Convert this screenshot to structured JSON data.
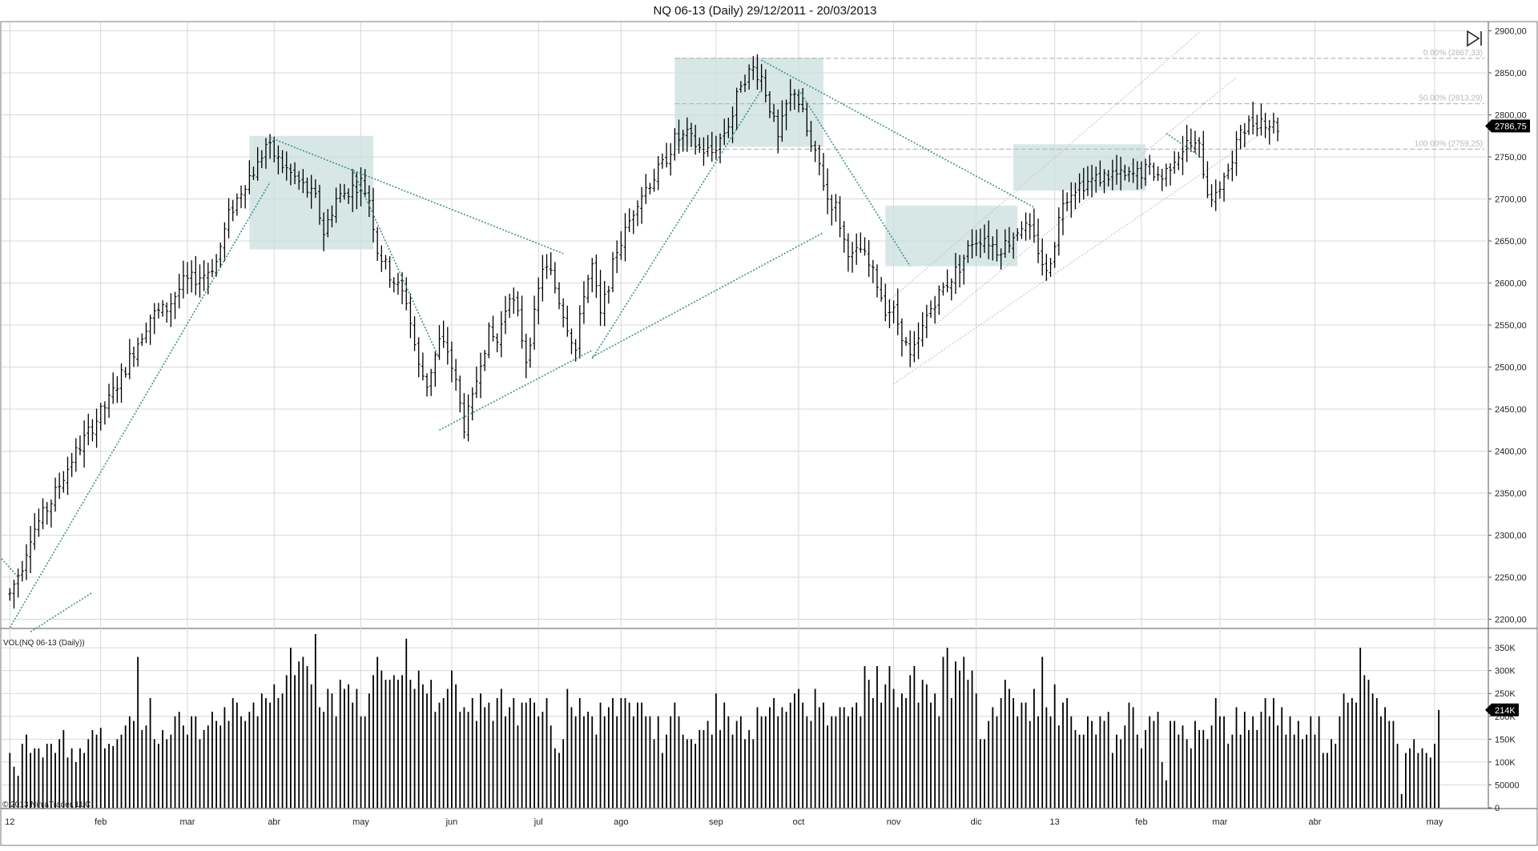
{
  "window": {
    "title": "NQ 06-13 (Daily)  29/12/2011 - 20/03/2013",
    "copyright": "© 2013 NinjaTrader, LLC",
    "button_icon": "play-end-icon"
  },
  "colors": {
    "background": "#ffffff",
    "grid": "#d8d8d8",
    "bar": "#000000",
    "trendline": "#3f8f8f",
    "zone_fill": "#c9dfdd",
    "fib_line": "#b4b4b4",
    "channel_line": "#c8c8c8",
    "price_tag_bg": "#000000",
    "price_tag_text": "#ffffff"
  },
  "chart_data": [
    {
      "type": "ohlc",
      "name": "price-panel",
      "title": "NQ 06-13 (Daily)  29/12/2011 - 20/03/2013",
      "ylim": [
        2190,
        2910
      ],
      "yticks": [
        2200,
        2250,
        2300,
        2350,
        2400,
        2450,
        2500,
        2550,
        2600,
        2650,
        2700,
        2750,
        2800,
        2850,
        2900
      ],
      "ytick_labels": [
        "2200,00",
        "2250,00",
        "2300,00",
        "2350,00",
        "2400,00",
        "2450,00",
        "2500,00",
        "2550,00",
        "2600,00",
        "2650,00",
        "2700,00",
        "2750,00",
        "2800,00",
        "2850,00",
        "2900,00"
      ],
      "last_price": 2786.75,
      "last_price_label": "2786,75",
      "x_months": [
        "12",
        "feb",
        "mar",
        "abr",
        "may",
        "jun",
        "jul",
        "ago",
        "sep",
        "oct",
        "nov",
        "dic",
        "13",
        "feb",
        "mar",
        "abr",
        "may"
      ],
      "x_month_index": [
        0,
        22,
        43,
        64,
        85,
        107,
        128,
        148,
        171,
        191,
        214,
        234,
        253,
        274,
        293,
        316,
        345
      ],
      "x_index_range": [
        -2,
        358
      ],
      "anchors": [
        [
          0,
          2230
        ],
        [
          3,
          2265
        ],
        [
          5,
          2300
        ],
        [
          10,
          2340
        ],
        [
          15,
          2390
        ],
        [
          20,
          2430
        ],
        [
          24,
          2460
        ],
        [
          28,
          2500
        ],
        [
          34,
          2560
        ],
        [
          38,
          2570
        ],
        [
          42,
          2600
        ],
        [
          47,
          2610
        ],
        [
          50,
          2625
        ],
        [
          53,
          2680
        ],
        [
          57,
          2720
        ],
        [
          60,
          2740
        ],
        [
          62,
          2765
        ],
        [
          66,
          2740
        ],
        [
          70,
          2720
        ],
        [
          74,
          2700
        ],
        [
          76,
          2660
        ],
        [
          79,
          2700
        ],
        [
          82,
          2710
        ],
        [
          85,
          2720
        ],
        [
          87,
          2700
        ],
        [
          89,
          2640
        ],
        [
          92,
          2610
        ],
        [
          96,
          2580
        ],
        [
          99,
          2500
        ],
        [
          101,
          2480
        ],
        [
          104,
          2530
        ],
        [
          106,
          2520
        ],
        [
          108,
          2480
        ],
        [
          110,
          2430
        ],
        [
          112,
          2460
        ],
        [
          114,
          2510
        ],
        [
          116,
          2540
        ],
        [
          118,
          2530
        ],
        [
          121,
          2590
        ],
        [
          123,
          2560
        ],
        [
          125,
          2510
        ],
        [
          127,
          2560
        ],
        [
          129,
          2620
        ],
        [
          131,
          2610
        ],
        [
          133,
          2580
        ],
        [
          135,
          2550
        ],
        [
          137,
          2520
        ],
        [
          139,
          2590
        ],
        [
          141,
          2620
        ],
        [
          143,
          2560
        ],
        [
          145,
          2600
        ],
        [
          147,
          2640
        ],
        [
          149,
          2660
        ],
        [
          152,
          2700
        ],
        [
          155,
          2720
        ],
        [
          158,
          2740
        ],
        [
          161,
          2770
        ],
        [
          164,
          2775
        ],
        [
          167,
          2760
        ],
        [
          170,
          2755
        ],
        [
          173,
          2780
        ],
        [
          175,
          2800
        ],
        [
          177,
          2840
        ],
        [
          180,
          2855
        ],
        [
          182,
          2845
        ],
        [
          184,
          2810
        ],
        [
          186,
          2770
        ],
        [
          188,
          2810
        ],
        [
          190,
          2830
        ],
        [
          192,
          2800
        ],
        [
          194,
          2760
        ],
        [
          196,
          2740
        ],
        [
          198,
          2700
        ],
        [
          200,
          2690
        ],
        [
          202,
          2650
        ],
        [
          204,
          2630
        ],
        [
          206,
          2640
        ],
        [
          208,
          2620
        ],
        [
          210,
          2600
        ],
        [
          212,
          2570
        ],
        [
          214,
          2565
        ],
        [
          216,
          2540
        ],
        [
          218,
          2510
        ],
        [
          220,
          2530
        ],
        [
          222,
          2560
        ],
        [
          224,
          2580
        ],
        [
          227,
          2600
        ],
        [
          230,
          2620
        ],
        [
          233,
          2650
        ],
        [
          236,
          2655
        ],
        [
          239,
          2640
        ],
        [
          242,
          2650
        ],
        [
          245,
          2670
        ],
        [
          247,
          2660
        ],
        [
          249,
          2640
        ],
        [
          251,
          2610
        ],
        [
          253,
          2650
        ],
        [
          255,
          2700
        ],
        [
          258,
          2715
        ],
        [
          261,
          2720
        ],
        [
          264,
          2725
        ],
        [
          267,
          2730
        ],
        [
          270,
          2725
        ],
        [
          273,
          2730
        ],
        [
          276,
          2735
        ],
        [
          279,
          2725
        ],
        [
          282,
          2750
        ],
        [
          285,
          2765
        ],
        [
          288,
          2760
        ],
        [
          290,
          2710
        ],
        [
          292,
          2700
        ],
        [
          294,
          2730
        ],
        [
          296,
          2740
        ],
        [
          298,
          2785
        ],
        [
          301,
          2790
        ],
        [
          303,
          2795
        ],
        [
          305,
          2790
        ],
        [
          307,
          2786
        ]
      ],
      "trendlines": [
        [
          [
            0,
            2190
          ],
          [
            63,
            2720
          ]
        ],
        [
          [
            63,
            2773
          ],
          [
            134,
            2635
          ]
        ],
        [
          [
            83,
            2735
          ],
          [
            104,
            2510
          ]
        ],
        [
          [
            104,
            2425
          ],
          [
            141,
            2520
          ]
        ],
        [
          [
            141,
            2510
          ],
          [
            182,
            2830
          ]
        ],
        [
          [
            182,
            2865
          ],
          [
            248,
            2690
          ]
        ],
        [
          [
            191,
            2830
          ],
          [
            218,
            2620
          ]
        ],
        [
          [
            141,
            2512
          ],
          [
            197,
            2660
          ]
        ],
        [
          [
            -2,
            2272
          ],
          [
            2,
            2250
          ]
        ],
        [
          [
            5,
            2185
          ],
          [
            20,
            2232
          ]
        ],
        [
          [
            280,
            2778
          ],
          [
            289,
            2748
          ]
        ]
      ],
      "zones": [
        [
          [
            58,
            2775
          ],
          [
            88,
            2640
          ]
        ],
        [
          [
            161,
            2868
          ],
          [
            197,
            2762
          ]
        ],
        [
          [
            212,
            2692
          ],
          [
            244,
            2620
          ]
        ],
        [
          [
            243,
            2765
          ],
          [
            275,
            2710
          ]
        ]
      ],
      "channels": [
        [
          [
            212,
            2575
          ],
          [
            288,
            2898
          ]
        ],
        [
          [
            214,
            2480
          ],
          [
            302,
            2775
          ]
        ],
        [
          [
            224,
            2550
          ],
          [
            297,
            2845
          ]
        ]
      ],
      "fib_levels": [
        {
          "label": "0.00% (2867,33)",
          "value": 2867.33
        },
        {
          "label": "50.00% (2813,29)",
          "value": 2813.29
        },
        {
          "label": "100.00% (2759,25)",
          "value": 2759.25
        }
      ],
      "fib_x_range": [
        161,
        357
      ]
    },
    {
      "type": "bar",
      "name": "volume-panel",
      "title": "VOL(NQ 06-13 (Daily))",
      "ylim": [
        0,
        380000
      ],
      "yticks": [
        0,
        50000,
        100000,
        150000,
        200000,
        250000,
        300000,
        350000
      ],
      "ytick_labels": [
        "0",
        "50000",
        "100K",
        "150K",
        "200K",
        "250K",
        "300K",
        "350K"
      ],
      "last_value": 214000,
      "last_value_label": "214K",
      "values": [
        120000,
        90000,
        70000,
        140000,
        160000,
        120000,
        130000,
        130000,
        110000,
        140000,
        140000,
        120000,
        150000,
        170000,
        110000,
        130000,
        100000,
        130000,
        120000,
        150000,
        170000,
        160000,
        175000,
        130000,
        140000,
        135000,
        150000,
        160000,
        180000,
        200000,
        190000,
        330000,
        170000,
        180000,
        240000,
        150000,
        140000,
        170000,
        150000,
        160000,
        200000,
        210000,
        180000,
        160000,
        200000,
        200000,
        150000,
        170000,
        180000,
        210000,
        190000,
        180000,
        220000,
        190000,
        240000,
        230000,
        200000,
        190000,
        210000,
        230000,
        200000,
        250000,
        240000,
        230000,
        270000,
        240000,
        250000,
        290000,
        350000,
        290000,
        320000,
        330000,
        310000,
        270000,
        380000,
        220000,
        210000,
        260000,
        250000,
        200000,
        280000,
        260000,
        270000,
        230000,
        260000,
        200000,
        200000,
        250000,
        290000,
        330000,
        300000,
        280000,
        280000,
        290000,
        280000,
        290000,
        370000,
        280000,
        260000,
        300000,
        270000,
        250000,
        280000,
        210000,
        230000,
        240000,
        260000,
        300000,
        270000,
        210000,
        220000,
        210000,
        240000,
        190000,
        250000,
        220000,
        230000,
        190000,
        240000,
        260000,
        200000,
        220000,
        240000,
        180000,
        230000,
        230000,
        240000,
        230000,
        200000,
        210000,
        240000,
        180000,
        130000,
        120000,
        150000,
        260000,
        220000,
        200000,
        240000,
        200000,
        210000,
        200000,
        160000,
        230000,
        200000,
        220000,
        240000,
        200000,
        240000,
        240000,
        230000,
        200000,
        230000,
        230000,
        200000,
        200000,
        150000,
        200000,
        120000,
        160000,
        200000,
        230000,
        200000,
        160000,
        150000,
        150000,
        140000,
        170000,
        170000,
        190000,
        160000,
        250000,
        170000,
        230000,
        200000,
        160000,
        190000,
        200000,
        150000,
        170000,
        150000,
        220000,
        200000,
        200000,
        220000,
        240000,
        200000,
        220000,
        210000,
        230000,
        250000,
        260000,
        230000,
        200000,
        190000,
        260000,
        220000,
        230000,
        180000,
        200000,
        200000,
        220000,
        220000,
        200000,
        220000,
        230000,
        200000,
        310000,
        280000,
        240000,
        310000,
        230000,
        270000,
        310000,
        260000,
        220000,
        250000,
        240000,
        290000,
        310000,
        230000,
        280000,
        270000,
        230000,
        250000,
        200000,
        330000,
        350000,
        240000,
        320000,
        300000,
        330000,
        280000,
        300000,
        250000,
        150000,
        150000,
        190000,
        220000,
        200000,
        240000,
        280000,
        260000,
        240000,
        200000,
        230000,
        230000,
        190000,
        260000,
        200000,
        330000,
        220000,
        200000,
        270000,
        180000,
        230000,
        240000,
        200000,
        170000,
        160000,
        160000,
        200000,
        190000,
        160000,
        200000,
        190000,
        210000,
        120000,
        160000,
        150000,
        180000,
        230000,
        220000,
        160000,
        130000,
        170000,
        200000,
        190000,
        210000,
        100000,
        60000,
        190000,
        190000,
        160000,
        180000,
        150000,
        130000,
        190000,
        170000,
        170000,
        150000,
        180000,
        240000,
        200000,
        200000,
        140000,
        160000,
        220000,
        160000,
        210000,
        170000,
        200000,
        170000,
        210000,
        240000,
        200000,
        240000,
        180000,
        220000,
        160000,
        200000,
        160000,
        190000,
        150000,
        160000,
        200000,
        160000,
        200000,
        120000,
        120000,
        150000,
        140000,
        200000,
        250000,
        230000,
        240000,
        230000,
        350000,
        290000,
        280000,
        250000,
        240000,
        200000,
        220000,
        190000,
        190000,
        140000,
        30000,
        120000,
        130000,
        150000,
        120000,
        130000,
        120000,
        110000,
        140000,
        214000
      ]
    }
  ]
}
